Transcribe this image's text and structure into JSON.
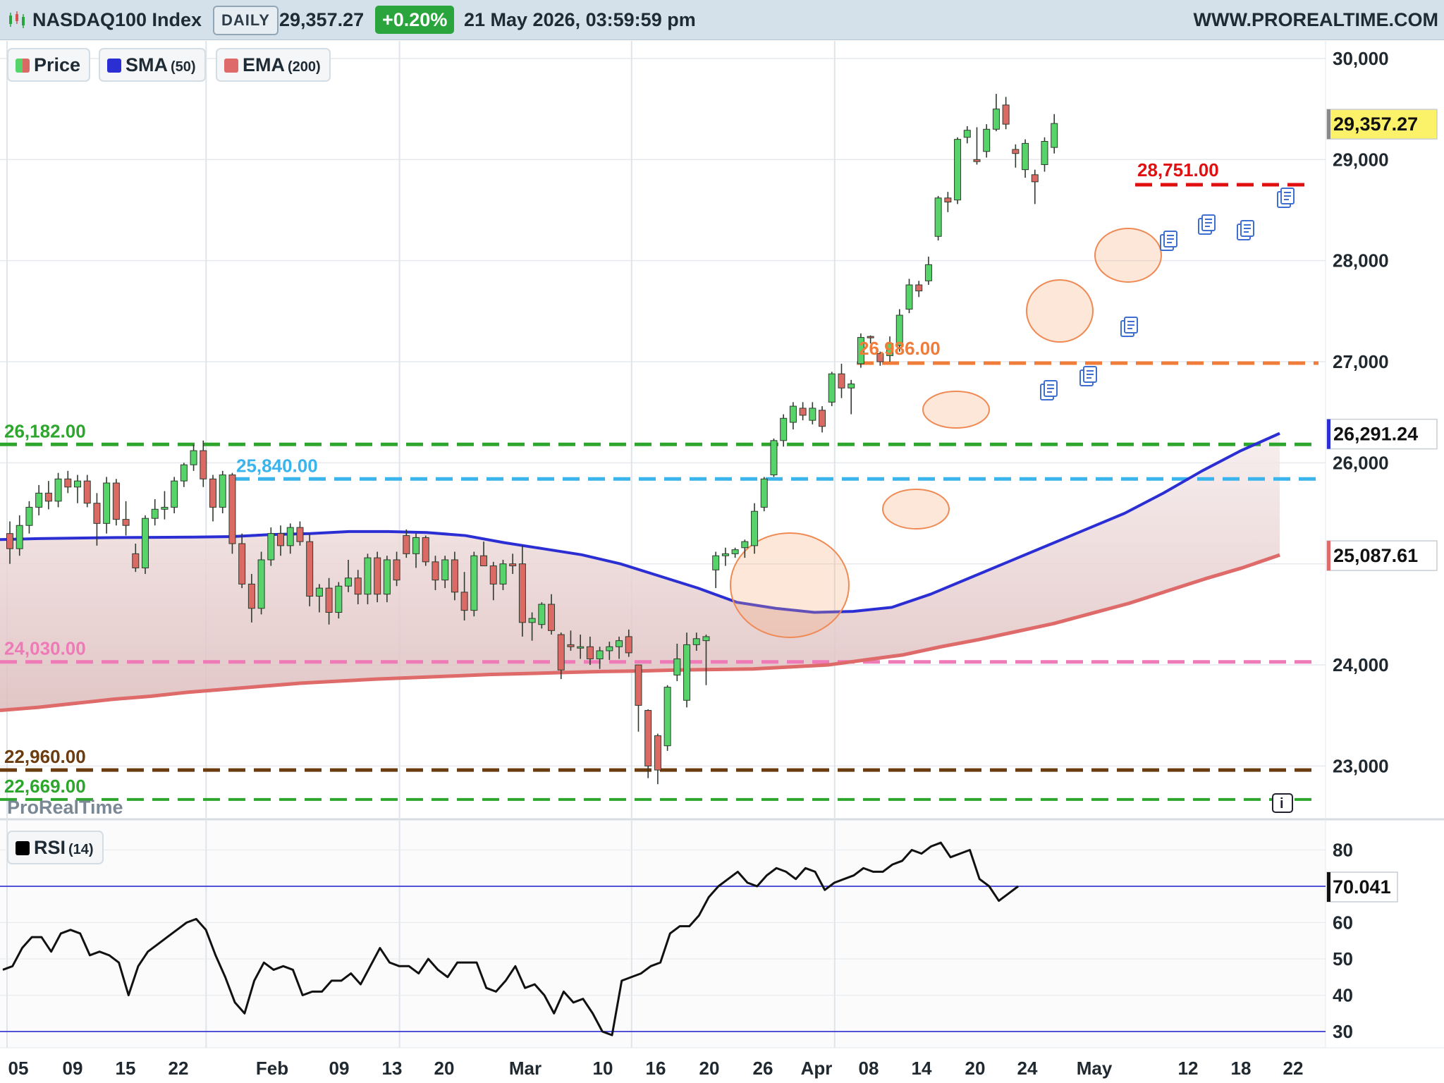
{
  "header": {
    "title": "NASDAQ100 Index",
    "period": "DAILY",
    "last_value": "29,357.27",
    "change": "+0.20%",
    "datetime": "21 May 2026, 03:59:59 pm",
    "website": "WWW.PROREALTIME.COM"
  },
  "legend": {
    "price_label": "Price",
    "sma_label": "SMA",
    "sma_period": "(50)",
    "ema_label": "EMA",
    "ema_period": "(200)",
    "rsi_label": "RSI",
    "rsi_period": "(14)"
  },
  "watermark": "ProRealTime",
  "info_icon": "i",
  "colors": {
    "up": "#56d46a",
    "down": "#dc6a64",
    "sma": "#2b2fd3",
    "ema": "#de6a6a",
    "header_bg": "#d4e1eb",
    "rsi_line": "#111111",
    "rsi_level_line": "#3a3ad4"
  },
  "icons": [
    "chart-icon",
    "document-icon",
    "info-icon"
  ],
  "chart_data": [
    {
      "type": "candlestick",
      "title": "NASDAQ100 Index",
      "timeframe": "DAILY",
      "y_axis_ticks": [
        "30,000",
        "29,000",
        "28,000",
        "27,000",
        "26,000",
        "24,000",
        "23,000"
      ],
      "x_axis_ticks": [
        "05",
        "09",
        "15",
        "22",
        "Feb",
        "09",
        "13",
        "20",
        "Mar",
        "10",
        "16",
        "20",
        "26",
        "Apr",
        "08",
        "14",
        "20",
        "24",
        "May",
        "12",
        "18",
        "22"
      ],
      "ylim": [
        22550,
        30250
      ],
      "last_value_label": "29,357.27",
      "sma_value_label": "26,291.24",
      "ema_value_label": "25,087.61",
      "ohlc": [
        [
          25300,
          25420,
          25000,
          25150
        ],
        [
          25150,
          25480,
          25080,
          25380
        ],
        [
          25380,
          25620,
          25300,
          25560
        ],
        [
          25560,
          25780,
          25480,
          25700
        ],
        [
          25700,
          25820,
          25540,
          25620
        ],
        [
          25620,
          25900,
          25560,
          25840
        ],
        [
          25840,
          25920,
          25700,
          25760
        ],
        [
          25760,
          25880,
          25600,
          25820
        ],
        [
          25820,
          25880,
          25560,
          25600
        ],
        [
          25600,
          25700,
          25180,
          25400
        ],
        [
          25400,
          25860,
          25300,
          25800
        ],
        [
          25800,
          25840,
          25380,
          25440
        ],
        [
          25440,
          25620,
          25280,
          25380
        ],
        [
          25100,
          25200,
          24920,
          24960
        ],
        [
          24960,
          25480,
          24900,
          25450
        ],
        [
          25450,
          25640,
          25380,
          25540
        ],
        [
          25540,
          25720,
          25440,
          25560
        ],
        [
          25560,
          25860,
          25500,
          25820
        ],
        [
          25820,
          26000,
          25760,
          25980
        ],
        [
          25980,
          26180,
          25920,
          26120
        ],
        [
          26120,
          26220,
          25760,
          25840
        ],
        [
          25840,
          25880,
          25420,
          25560
        ],
        [
          25560,
          25920,
          25500,
          25880
        ],
        [
          25880,
          25900,
          25100,
          25200
        ],
        [
          25200,
          25300,
          24760,
          24800
        ],
        [
          24800,
          24900,
          24420,
          24560
        ],
        [
          24560,
          25120,
          24500,
          25040
        ],
        [
          25040,
          25360,
          24980,
          25300
        ],
        [
          25300,
          25380,
          25080,
          25180
        ],
        [
          25180,
          25400,
          25100,
          25360
        ],
        [
          25360,
          25420,
          25180,
          25220
        ],
        [
          25220,
          25300,
          24580,
          24680
        ],
        [
          24680,
          24800,
          24520,
          24760
        ],
        [
          24760,
          24860,
          24400,
          24520
        ],
        [
          24520,
          24820,
          24460,
          24780
        ],
        [
          24780,
          25040,
          24720,
          24860
        ],
        [
          24860,
          24940,
          24600,
          24700
        ],
        [
          24700,
          25100,
          24600,
          25060
        ],
        [
          25060,
          25120,
          24620,
          24700
        ],
        [
          24700,
          25080,
          24620,
          25040
        ],
        [
          25040,
          25120,
          24780,
          24840
        ],
        [
          25280,
          25340,
          25060,
          25100
        ],
        [
          25100,
          25300,
          24960,
          25260
        ],
        [
          25260,
          25280,
          24980,
          25020
        ],
        [
          25020,
          25080,
          24740,
          24840
        ],
        [
          24840,
          25080,
          24760,
          25040
        ],
        [
          25040,
          25120,
          24640,
          24720
        ],
        [
          24720,
          24920,
          24440,
          24540
        ],
        [
          24540,
          25120,
          24480,
          25080
        ],
        [
          25080,
          25220,
          24980,
          24980
        ],
        [
          24980,
          25020,
          24640,
          24800
        ],
        [
          24800,
          25040,
          24740,
          25000
        ],
        [
          25000,
          25100,
          24900,
          24980
        ],
        [
          25000,
          25180,
          24280,
          24420
        ],
        [
          24420,
          24520,
          24240,
          24460
        ],
        [
          24400,
          24620,
          24360,
          24600
        ],
        [
          24600,
          24700,
          24300,
          24340
        ],
        [
          24300,
          24320,
          23860,
          23950
        ],
        [
          24200,
          24340,
          24140,
          24180
        ],
        [
          24180,
          24300,
          24060,
          24180
        ],
        [
          24180,
          24280,
          24000,
          24060
        ],
        [
          24060,
          24180,
          23960,
          24140
        ],
        [
          24140,
          24230,
          24050,
          24180
        ],
        [
          24180,
          24280,
          24060,
          24240
        ],
        [
          24280,
          24350,
          24080,
          24120
        ],
        [
          24000,
          24000,
          23340,
          23600
        ],
        [
          23550,
          23560,
          22880,
          23000
        ],
        [
          23300,
          23320,
          22820,
          22960
        ],
        [
          23200,
          23800,
          23150,
          23780
        ],
        [
          23900,
          24210,
          23840,
          24060
        ],
        [
          23650,
          24320,
          23580,
          24200
        ],
        [
          24200,
          24320,
          24140,
          24260
        ],
        [
          24240,
          24300,
          23800,
          24280
        ],
        [
          24940,
          25120,
          24760,
          25080
        ],
        [
          25080,
          25160,
          24980,
          25100
        ],
        [
          25100,
          25160,
          25060,
          25140
        ],
        [
          25160,
          25240,
          25060,
          25220
        ],
        [
          25180,
          25600,
          25100,
          25520
        ],
        [
          25560,
          25860,
          25520,
          25840
        ],
        [
          25880,
          26240,
          25860,
          26220
        ],
        [
          26220,
          26480,
          26160,
          26440
        ],
        [
          26400,
          26600,
          26330,
          26560
        ],
        [
          26540,
          26600,
          26420,
          26470
        ],
        [
          26420,
          26600,
          26380,
          26540
        ],
        [
          26520,
          26560,
          26300,
          26360
        ],
        [
          26600,
          26900,
          26560,
          26880
        ],
        [
          26880,
          26980,
          26640,
          26740
        ],
        [
          26740,
          26820,
          26480,
          26780
        ],
        [
          26980,
          27280,
          26940,
          27240
        ],
        [
          27250,
          27260,
          27180,
          27240
        ],
        [
          27080,
          27100,
          26960,
          27000
        ],
        [
          27060,
          27250,
          27000,
          27180
        ],
        [
          27160,
          27520,
          27100,
          27460
        ],
        [
          27520,
          27820,
          27480,
          27760
        ],
        [
          27760,
          27800,
          27640,
          27700
        ],
        [
          27800,
          28040,
          27760,
          27960
        ],
        [
          28240,
          28640,
          28200,
          28620
        ],
        [
          28620,
          28680,
          28480,
          28580
        ],
        [
          28600,
          29220,
          28560,
          29200
        ],
        [
          29220,
          29330,
          29160,
          29290
        ],
        [
          29000,
          29320,
          28950,
          28980
        ],
        [
          29080,
          29350,
          29020,
          29300
        ],
        [
          29300,
          29650,
          29280,
          29500
        ],
        [
          29540,
          29620,
          29300,
          29350
        ],
        [
          29100,
          29150,
          28920,
          29060
        ],
        [
          28900,
          29200,
          28820,
          29160
        ],
        [
          28850,
          28900,
          28560,
          28780
        ],
        [
          28950,
          29220,
          28880,
          29180
        ],
        [
          29120,
          29450,
          29060,
          29357
        ]
      ],
      "sma50": [
        25240,
        25250,
        25255,
        25260,
        25262,
        25265,
        25270,
        25290,
        25300,
        25320,
        25320,
        25310,
        25280,
        25210,
        25150,
        25090,
        25000,
        24880,
        24760,
        24620,
        24560,
        24520,
        24530,
        24570,
        24700,
        24860,
        25020,
        25180,
        25340,
        25500,
        25700,
        25920,
        26120,
        26291
      ],
      "ema200": [
        23550,
        23580,
        23620,
        23660,
        23690,
        23730,
        23760,
        23790,
        23820,
        23840,
        23860,
        23875,
        23890,
        23905,
        23915,
        23925,
        23935,
        23940,
        23950,
        23955,
        23960,
        23980,
        24000,
        24050,
        24100,
        24180,
        24250,
        24330,
        24410,
        24510,
        24610,
        24730,
        24850,
        24960,
        25088
      ],
      "horizontal_levels": [
        {
          "value": 26182,
          "label": "26,182.00",
          "color": "#2ea62e",
          "style": "dashed"
        },
        {
          "value": 25840,
          "label": "25,840.00",
          "color": "#3ab4ec",
          "style": "dashed"
        },
        {
          "value": 24030,
          "label": "24,030.00",
          "color": "#ee7ab8",
          "style": "dashed"
        },
        {
          "value": 22960,
          "label": "22,960.00",
          "color": "#6b3c10",
          "style": "dashed"
        },
        {
          "value": 22669,
          "label": "22,669.00",
          "color": "#2ea62e",
          "style": "dashed"
        },
        {
          "value": 26986,
          "label": "26,986.00",
          "color": "#f07c3a",
          "style": "dashed"
        },
        {
          "value": 28751,
          "label": "28,751.00",
          "color": "#e01010",
          "style": "dashed"
        }
      ]
    },
    {
      "type": "line",
      "title": "RSI",
      "period": "(14)",
      "y_axis_ticks": [
        "80",
        "60",
        "50",
        "40",
        "30"
      ],
      "ylim": [
        25,
        85
      ],
      "levels": [
        70,
        30
      ],
      "last_value_label": "70.041",
      "values": [
        47,
        48,
        53,
        56,
        56,
        52,
        57,
        58,
        57,
        51,
        52,
        51,
        49,
        40,
        48,
        52,
        54,
        56,
        58,
        60,
        61,
        58,
        51,
        45,
        38,
        35,
        44,
        49,
        47,
        48,
        47,
        40,
        41,
        41,
        44,
        44,
        46,
        43,
        48,
        53,
        49,
        48,
        48,
        46,
        50,
        47,
        45,
        49,
        49,
        49,
        42,
        41,
        44,
        48,
        42,
        43,
        40,
        35,
        41,
        38,
        39,
        35,
        30,
        29,
        44,
        45,
        46,
        48,
        49,
        57,
        59,
        59,
        62,
        67,
        70,
        72,
        74,
        71,
        70,
        73,
        75,
        74,
        72,
        75,
        74,
        69,
        71,
        72,
        73,
        75,
        74,
        74,
        76,
        77,
        80,
        79,
        81,
        82,
        78,
        79,
        80,
        72,
        70,
        66,
        68,
        70
      ]
    }
  ]
}
